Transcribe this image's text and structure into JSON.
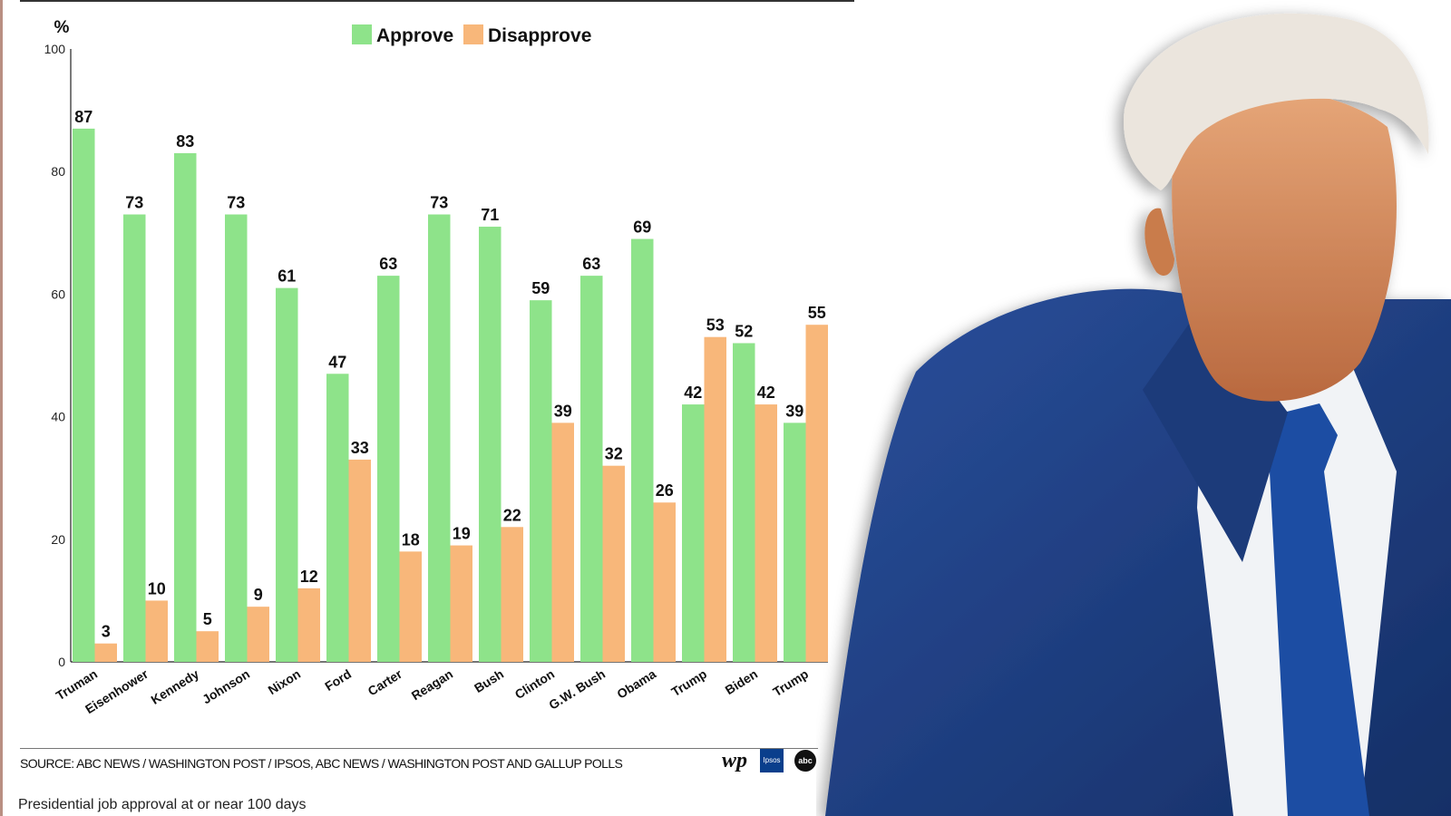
{
  "chart_data": {
    "type": "bar",
    "title": "",
    "xlabel": "",
    "ylabel": "%",
    "ylim": [
      0,
      100
    ],
    "yticks": [
      0,
      20,
      40,
      60,
      80,
      100
    ],
    "grid": false,
    "legend_position": "top-center",
    "categories": [
      "Truman",
      "Eisenhower",
      "Kennedy",
      "Johnson",
      "Nixon",
      "Ford",
      "Carter",
      "Reagan",
      "Bush",
      "Clinton",
      "G.W. Bush",
      "Obama",
      "Trump",
      "Biden",
      "Trump"
    ],
    "series": [
      {
        "name": "Approve",
        "color": "#8ee38a",
        "values": [
          87,
          73,
          83,
          73,
          61,
          47,
          63,
          73,
          71,
          59,
          63,
          69,
          42,
          52,
          39
        ]
      },
      {
        "name": "Disapprove",
        "color": "#f8b77a",
        "values": [
          3,
          10,
          5,
          9,
          12,
          33,
          18,
          19,
          22,
          39,
          32,
          26,
          53,
          42,
          55
        ]
      }
    ]
  },
  "source_text": "SOURCE: ABC NEWS / WASHINGTON POST / IPSOS, ABC NEWS / WASHINGTON POST AND GALLUP POLLS",
  "logos": {
    "wp": "wp",
    "ipsos": "Ipsos",
    "abc": "abc"
  },
  "caption": "Presidential job approval at or near 100 days",
  "photo": {
    "icon": "portrait-photo",
    "colors": {
      "suit": "#1f3f85",
      "tie": "#1a4ea3",
      "shirt": "#f4f6f8",
      "skin": "#d98f60",
      "hair": "#e9e4dc"
    }
  }
}
